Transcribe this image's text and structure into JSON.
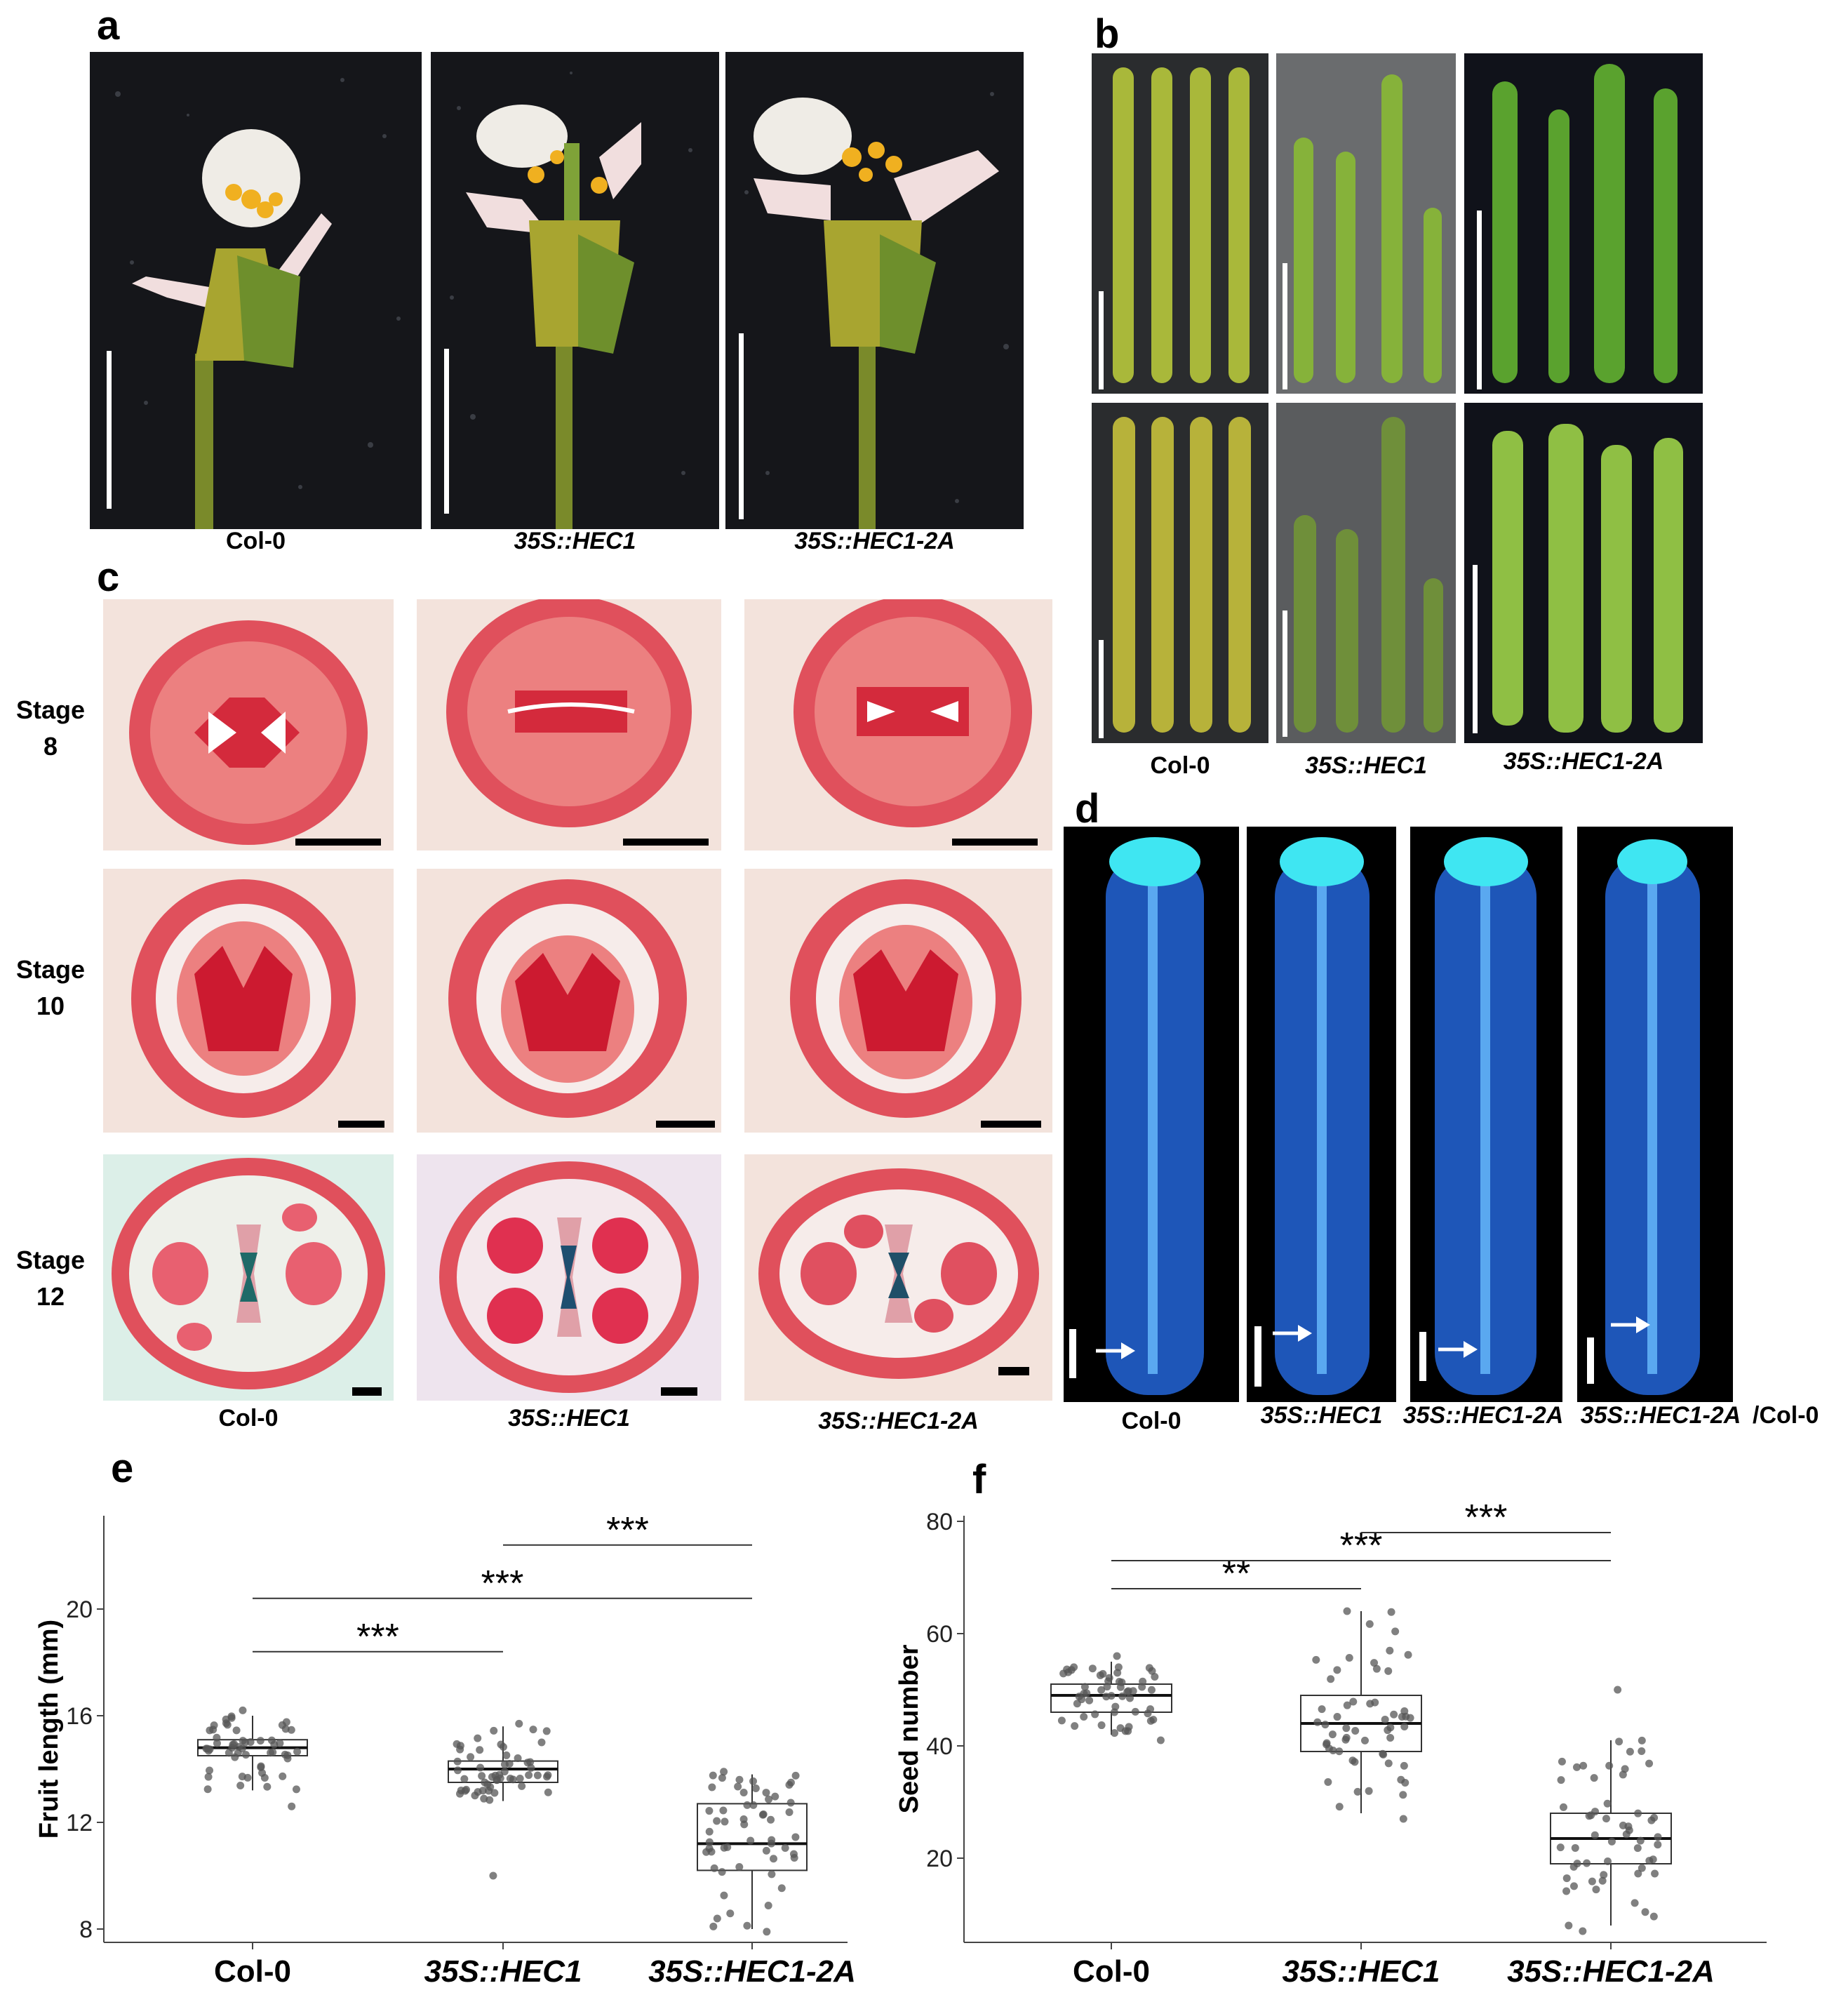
{
  "panels": {
    "a": {
      "label": "a",
      "captions": [
        "Col-0",
        "35S::HEC1",
        "35S::HEC1-2A"
      ]
    },
    "b": {
      "label": "b",
      "captions": [
        "Col-0",
        "35S::HEC1",
        "35S::HEC1-2A"
      ]
    },
    "c": {
      "label": "c",
      "stages": [
        {
          "line1": "Stage",
          "line2": "8"
        },
        {
          "line1": "Stage",
          "line2": "10"
        },
        {
          "line1": "Stage",
          "line2": "12"
        }
      ],
      "captions": [
        "Col-0",
        "35S::HEC1",
        "35S::HEC1-2A"
      ]
    },
    "d": {
      "label": "d",
      "captions": [
        "Col-0",
        "35S::HEC1",
        "35S::HEC1-2A",
        "35S::HEC1-2A",
        "/Col-0"
      ]
    },
    "e": {
      "label": "e"
    },
    "f": {
      "label": "f"
    }
  },
  "colors": {
    "photo_dark": "#15161a",
    "section_red": "#d42a3c",
    "section_bg": "#f3e3dc",
    "fluor_blue": "#1f6fd6",
    "stigma_cyan": "#3fe6f2",
    "silique_green": "#8fb234",
    "gus_teal": "#1f6a68",
    "point_gray": "#555555"
  },
  "chart_data": [
    {
      "panel": "e",
      "type": "box",
      "ylabel": "Fruit length (mm)",
      "categories": [
        "Col-0",
        "35S::HEC1",
        "35S::HEC1-2A"
      ],
      "ylim": [
        7.5,
        23.5
      ],
      "yticks": [
        8,
        12,
        16,
        20
      ],
      "boxes": [
        {
          "q1": 14.5,
          "median": 14.8,
          "q3": 15.1,
          "low": 13.2,
          "high": 16.0,
          "pmin": 12.6,
          "pmax": 16.2
        },
        {
          "q1": 13.5,
          "median": 14.0,
          "q3": 14.3,
          "low": 12.8,
          "high": 15.6,
          "pmin": 10.0,
          "pmax": 15.7
        },
        {
          "q1": 10.2,
          "median": 11.2,
          "q3": 12.7,
          "low": 8.0,
          "high": 13.8,
          "pmin": 7.9,
          "pmax": 13.9
        }
      ],
      "significance": [
        {
          "from": 0,
          "to": 1,
          "label": "***",
          "y": 18.4
        },
        {
          "from": 0,
          "to": 2,
          "label": "***",
          "y": 20.4
        },
        {
          "from": 1,
          "to": 2,
          "label": "***",
          "y": 22.4
        }
      ]
    },
    {
      "panel": "f",
      "type": "box",
      "ylabel": "Seed number",
      "categories": [
        "Col-0",
        "35S::HEC1",
        "35S::HEC1-2A"
      ],
      "ylim": [
        5,
        81
      ],
      "yticks": [
        20,
        40,
        60,
        80
      ],
      "boxes": [
        {
          "q1": 46,
          "median": 49,
          "q3": 51,
          "low": 42,
          "high": 55,
          "pmin": 41,
          "pmax": 56
        },
        {
          "q1": 39,
          "median": 44,
          "q3": 49,
          "low": 28,
          "high": 64,
          "pmin": 27,
          "pmax": 64
        },
        {
          "q1": 19,
          "median": 23.5,
          "q3": 28,
          "low": 8,
          "high": 41,
          "pmin": 7,
          "pmax": 50
        }
      ],
      "significance": [
        {
          "from": 0,
          "to": 1,
          "label": "**",
          "y": 68
        },
        {
          "from": 0,
          "to": 2,
          "label": "***",
          "y": 73
        },
        {
          "from": 1,
          "to": 2,
          "label": "***",
          "y": 78
        }
      ]
    }
  ]
}
